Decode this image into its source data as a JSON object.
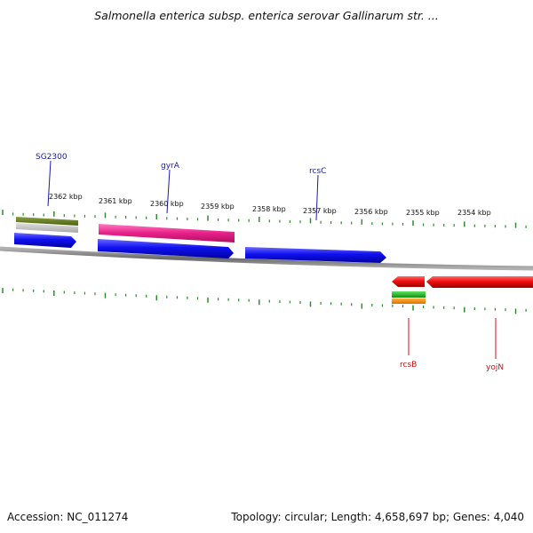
{
  "header": {
    "title": "Salmonella enterica subsp. enterica serovar Gallinarum str. ..."
  },
  "footer": {
    "accession": "Accession: NC_011274",
    "summary": "Topology: circular; Length: 4,658,697 bp; Genes: 4,040"
  },
  "colors": {
    "tick": "#2e8b2e",
    "backbone": "#8a8a8a",
    "label_blue": "#1a1aa6",
    "label_red": "#cc1010"
  },
  "ruler": {
    "unit": "kbp",
    "labels": [
      "2362 kbp",
      "2361 kbp",
      "2360 kbp",
      "2359 kbp",
      "2358 kbp",
      "2357 kbp",
      "2356 kbp",
      "2355 kbp",
      "2354 kbp"
    ]
  },
  "genes": [
    {
      "name": "SG2300",
      "color": "#1a1aa6"
    },
    {
      "name": "gyrA",
      "color": "#1a1aa6"
    },
    {
      "name": "rcsC",
      "color": "#1a1aa6"
    },
    {
      "name": "rcsB",
      "color": "#cc1010"
    },
    {
      "name": "yojN",
      "color": "#cc1010"
    }
  ]
}
